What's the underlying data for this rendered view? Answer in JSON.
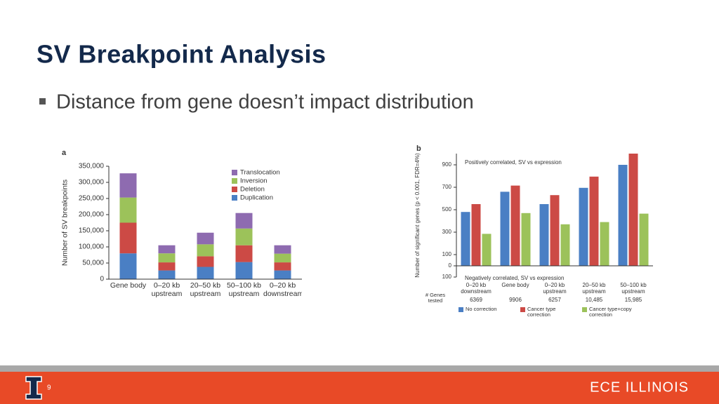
{
  "slide_title": "SV Breakpoint Analysis",
  "bullet": "Distance from gene doesn’t impact distribution",
  "page_number": "9",
  "footer_brand": "ECE ILLINOIS",
  "chart_data": [
    {
      "type": "stacked_bar",
      "panel": "a",
      "y_label": "Number of SV breakpoints",
      "categories": [
        "Gene body",
        "0–20 kb upstream",
        "20–50 kb upstream",
        "50–100 kb upstream",
        "0–20 kb downstream"
      ],
      "series": [
        {
          "name": "Duplication",
          "color": "#4a7fc4",
          "values": [
            80000,
            27000,
            38000,
            53000,
            27000
          ]
        },
        {
          "name": "Deletion",
          "color": "#cc4a45",
          "values": [
            95000,
            25000,
            33000,
            52000,
            25000
          ]
        },
        {
          "name": "Inversion",
          "color": "#9cc25a",
          "values": [
            78000,
            28000,
            37000,
            52000,
            27000
          ]
        },
        {
          "name": "Translocation",
          "color": "#8e6bb0",
          "values": [
            75000,
            25000,
            36000,
            48000,
            26000
          ]
        }
      ],
      "ylim": [
        0,
        350000
      ],
      "yticks": [
        0,
        {
          "value": 50000,
          "label": "50,000"
        },
        {
          "value": 100000,
          "label": "100,000"
        },
        {
          "value": 150000,
          "label": "150,000"
        },
        {
          "value": 200000,
          "label": "200,000"
        },
        {
          "value": 250000,
          "label": "250,000"
        },
        {
          "value": 300000,
          "label": "300,000"
        },
        {
          "value": 350000,
          "label": "350,000"
        }
      ]
    },
    {
      "type": "grouped_bar",
      "panel": "b",
      "y_label": "Number of significant genes (p < 0.001, FDR=4%)",
      "annotations": [
        "Positively correlated, SV vs expression",
        "Negatively correlated, SV vs expression"
      ],
      "categories": [
        "0–20 kb downstream",
        "Gene body",
        "0–20 kb upstream",
        "20–50 kb upstream",
        "50–100 kb upstream"
      ],
      "genes_tested_label": "# Genes tested",
      "genes_tested": [
        "6369",
        "9906",
        "6257",
        "10,485",
        "15,985"
      ],
      "series": [
        {
          "name": "No correction",
          "color": "#4a7fc4",
          "values": [
            480,
            660,
            550,
            695,
            900
          ]
        },
        {
          "name": "Cancer type correction",
          "color": "#cc4a45",
          "values": [
            550,
            715,
            630,
            795,
            1000
          ]
        },
        {
          "name": "Cancer type+copy correction",
          "color": "#9cc25a",
          "values": [
            285,
            470,
            370,
            390,
            465
          ]
        }
      ],
      "ylim": [
        -100,
        1000
      ],
      "yticks": [
        {
          "value": -100,
          "label": "100"
        },
        0,
        100,
        300,
        500,
        700,
        900
      ]
    }
  ]
}
